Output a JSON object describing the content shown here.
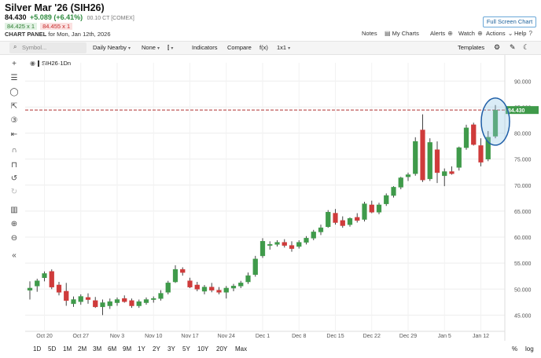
{
  "header": {
    "title": "Silver Mar '26 (SIH26)",
    "last": "84.430",
    "change": "+5.089 (+6.41%)",
    "meta": "00.10 CT [COMEX]",
    "bid": "84.425 x 1",
    "ask": "84.455 x 1",
    "panel_label": "CHART PANEL",
    "panel_date": "for Mon, Jan 12th, 2026"
  },
  "top_links": {
    "fullscreen": "Full Screen Chart",
    "notes": "Notes",
    "my_charts": "My Charts",
    "alerts": "Alerts",
    "watch": "Watch",
    "actions": "Actions",
    "help": "Help"
  },
  "toolbar": {
    "symbol_placeholder": "Symbol...",
    "daily_nearby": "Daily Nearby",
    "none": "None",
    "indicators": "Indicators",
    "compare": "Compare",
    "fx": "f(x)",
    "layout": "1x1",
    "templates": "Templates"
  },
  "legend": {
    "symbol": "SIH26",
    "interval": "1Dn"
  },
  "price_label": "84.430",
  "ranges": [
    "1D",
    "5D",
    "1M",
    "2M",
    "3M",
    "6M",
    "9M",
    "1Y",
    "2Y",
    "3Y",
    "5Y",
    "10Y",
    "20Y",
    "Max"
  ],
  "bottom_right": {
    "percent": "%",
    "log": "log"
  },
  "colors": {
    "up": "#3f9a4a",
    "down": "#cf3b3b",
    "price_line": "#b03030",
    "highlight": "#1f5fa8"
  },
  "icons": [
    "crosshair-icon",
    "text-icon",
    "circle-icon",
    "arrow-icon",
    "fibonacci-icon",
    "pitchfork-icon",
    "magnet-icon",
    "lock-icon",
    "undo-icon",
    "redo-icon",
    "trash-icon",
    "zoom-in-icon",
    "zoom-out-icon",
    "collapse-icon"
  ],
  "chart_data": {
    "type": "candlestick",
    "x_ticks": [
      "Oct 20",
      "Oct 27",
      "Nov 3",
      "Nov 10",
      "Nov 17",
      "Nov 24",
      "Dec 1",
      "Dec 8",
      "Dec 15",
      "Dec 22",
      "Dec 29",
      "Jan 5",
      "Jan 12"
    ],
    "y_ticks": [
      "45.000",
      "50.000",
      "55.000",
      "60.000",
      "65.000",
      "70.000",
      "75.000",
      "80.000",
      "85.000",
      "90.000"
    ],
    "ylim": [
      42.5,
      92
    ],
    "grid": true,
    "last_price": 84.43,
    "candles": [
      {
        "o": 49.8,
        "h": 51.5,
        "l": 48.0,
        "c": 50.2
      },
      {
        "o": 50.6,
        "h": 52.0,
        "l": 49.5,
        "c": 51.6
      },
      {
        "o": 52.2,
        "h": 53.4,
        "l": 51.5,
        "c": 53.0
      },
      {
        "o": 53.4,
        "h": 53.8,
        "l": 50.0,
        "c": 50.4
      },
      {
        "o": 50.8,
        "h": 51.4,
        "l": 48.8,
        "c": 49.4
      },
      {
        "o": 49.6,
        "h": 51.2,
        "l": 46.8,
        "c": 47.8
      },
      {
        "o": 47.2,
        "h": 48.6,
        "l": 46.6,
        "c": 48.0
      },
      {
        "o": 47.6,
        "h": 49.0,
        "l": 47.0,
        "c": 48.6
      },
      {
        "o": 48.4,
        "h": 49.2,
        "l": 47.2,
        "c": 48.0
      },
      {
        "o": 47.8,
        "h": 48.5,
        "l": 46.4,
        "c": 46.6
      },
      {
        "o": 46.6,
        "h": 48.0,
        "l": 45.0,
        "c": 47.4
      },
      {
        "o": 46.8,
        "h": 48.2,
        "l": 46.2,
        "c": 47.6
      },
      {
        "o": 47.4,
        "h": 48.4,
        "l": 46.8,
        "c": 48.0
      },
      {
        "o": 48.2,
        "h": 48.8,
        "l": 47.4,
        "c": 47.6
      },
      {
        "o": 47.8,
        "h": 48.2,
        "l": 46.4,
        "c": 46.8
      },
      {
        "o": 46.8,
        "h": 48.0,
        "l": 46.4,
        "c": 47.6
      },
      {
        "o": 47.4,
        "h": 48.4,
        "l": 47.0,
        "c": 48.0
      },
      {
        "o": 48.0,
        "h": 48.6,
        "l": 47.4,
        "c": 48.2
      },
      {
        "o": 48.2,
        "h": 49.8,
        "l": 47.8,
        "c": 49.2
      },
      {
        "o": 49.4,
        "h": 51.6,
        "l": 49.0,
        "c": 51.2
      },
      {
        "o": 51.4,
        "h": 54.6,
        "l": 51.2,
        "c": 53.8
      },
      {
        "o": 53.8,
        "h": 54.2,
        "l": 52.6,
        "c": 53.2
      },
      {
        "o": 51.6,
        "h": 52.2,
        "l": 50.2,
        "c": 50.4
      },
      {
        "o": 50.8,
        "h": 51.4,
        "l": 49.6,
        "c": 50.0
      },
      {
        "o": 49.6,
        "h": 50.8,
        "l": 49.0,
        "c": 50.4
      },
      {
        "o": 50.4,
        "h": 51.2,
        "l": 49.4,
        "c": 49.8
      },
      {
        "o": 49.8,
        "h": 50.4,
        "l": 49.0,
        "c": 49.4
      },
      {
        "o": 49.4,
        "h": 50.6,
        "l": 48.2,
        "c": 50.2
      },
      {
        "o": 50.2,
        "h": 51.0,
        "l": 49.6,
        "c": 50.6
      },
      {
        "o": 50.6,
        "h": 51.6,
        "l": 50.2,
        "c": 51.2
      },
      {
        "o": 51.4,
        "h": 53.2,
        "l": 51.0,
        "c": 52.6
      },
      {
        "o": 52.8,
        "h": 56.4,
        "l": 52.4,
        "c": 55.8
      },
      {
        "o": 56.4,
        "h": 59.8,
        "l": 56.0,
        "c": 59.2
      },
      {
        "o": 58.4,
        "h": 59.2,
        "l": 57.6,
        "c": 58.6
      },
      {
        "o": 58.6,
        "h": 59.4,
        "l": 58.2,
        "c": 59.0
      },
      {
        "o": 59.0,
        "h": 59.6,
        "l": 58.0,
        "c": 58.4
      },
      {
        "o": 58.4,
        "h": 59.2,
        "l": 57.2,
        "c": 57.8
      },
      {
        "o": 58.2,
        "h": 59.4,
        "l": 57.8,
        "c": 59.0
      },
      {
        "o": 59.0,
        "h": 60.2,
        "l": 58.6,
        "c": 59.8
      },
      {
        "o": 59.8,
        "h": 61.4,
        "l": 59.4,
        "c": 61.0
      },
      {
        "o": 61.0,
        "h": 62.4,
        "l": 60.4,
        "c": 61.8
      },
      {
        "o": 62.0,
        "h": 65.2,
        "l": 61.8,
        "c": 64.8
      },
      {
        "o": 64.6,
        "h": 65.4,
        "l": 62.4,
        "c": 62.8
      },
      {
        "o": 63.2,
        "h": 64.0,
        "l": 61.8,
        "c": 62.2
      },
      {
        "o": 62.4,
        "h": 63.8,
        "l": 62.0,
        "c": 63.6
      },
      {
        "o": 63.8,
        "h": 64.6,
        "l": 62.8,
        "c": 63.2
      },
      {
        "o": 63.4,
        "h": 66.8,
        "l": 63.0,
        "c": 66.4
      },
      {
        "o": 66.2,
        "h": 67.0,
        "l": 64.6,
        "c": 64.8
      },
      {
        "o": 64.8,
        "h": 66.6,
        "l": 64.4,
        "c": 66.2
      },
      {
        "o": 66.4,
        "h": 68.4,
        "l": 66.0,
        "c": 68.0
      },
      {
        "o": 68.0,
        "h": 69.8,
        "l": 67.6,
        "c": 69.6
      },
      {
        "o": 69.6,
        "h": 71.6,
        "l": 69.2,
        "c": 71.4
      },
      {
        "o": 71.6,
        "h": 72.4,
        "l": 70.8,
        "c": 72.0
      },
      {
        "o": 72.2,
        "h": 79.2,
        "l": 71.8,
        "c": 78.4
      },
      {
        "o": 80.6,
        "h": 83.6,
        "l": 70.6,
        "c": 71.0
      },
      {
        "o": 71.2,
        "h": 79.0,
        "l": 70.8,
        "c": 78.2
      },
      {
        "o": 76.8,
        "h": 78.4,
        "l": 70.4,
        "c": 72.4
      },
      {
        "o": 71.8,
        "h": 73.2,
        "l": 69.8,
        "c": 72.6
      },
      {
        "o": 72.6,
        "h": 73.6,
        "l": 72.0,
        "c": 72.2
      },
      {
        "o": 73.4,
        "h": 77.4,
        "l": 72.8,
        "c": 77.2
      },
      {
        "o": 77.2,
        "h": 81.6,
        "l": 76.8,
        "c": 81.0
      },
      {
        "o": 81.6,
        "h": 82.0,
        "l": 77.6,
        "c": 77.8
      },
      {
        "o": 77.6,
        "h": 79.0,
        "l": 73.6,
        "c": 74.4
      },
      {
        "o": 75.0,
        "h": 80.4,
        "l": 74.6,
        "c": 79.2
      },
      {
        "o": 79.4,
        "h": 85.4,
        "l": 79.0,
        "c": 84.4
      }
    ]
  }
}
